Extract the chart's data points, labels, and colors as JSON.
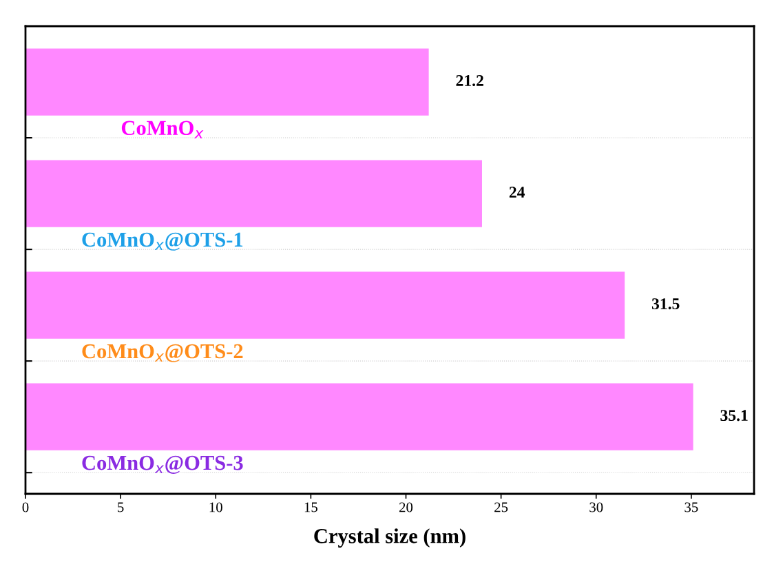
{
  "chart_data": {
    "type": "bar",
    "orientation": "horizontal",
    "xlabel": "Crystal size (nm)",
    "categories": [
      "CoMnO$_{x}$",
      "CoMnO$_{x}$@OTS-1",
      "CoMnO$_{x}$@OTS-2",
      "CoMnO$_{x}$@OTS-3"
    ],
    "values": [
      21.2,
      24,
      31.5,
      35.1
    ],
    "color": "#ff88ff",
    "xlim": [
      0,
      38.3
    ],
    "xticks": [
      0,
      5,
      10,
      15,
      20,
      25,
      30,
      35
    ],
    "grid": "y",
    "data_labels": true
  }
}
